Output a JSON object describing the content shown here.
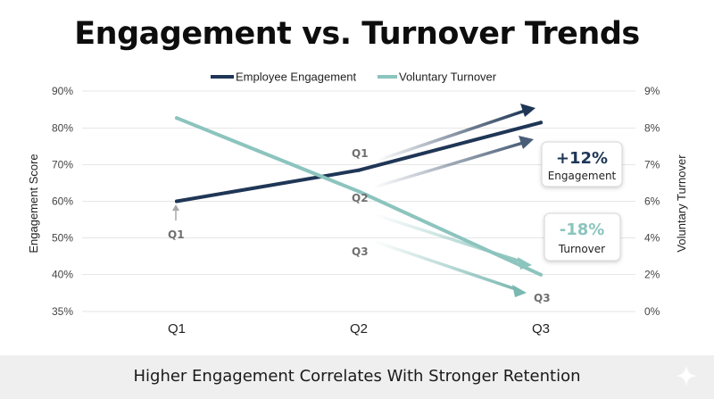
{
  "chart_data": {
    "type": "line",
    "title": "Engagement vs. Turnover Trends",
    "subtitle": "Higher Engagement Correlates With Stronger Retention",
    "categories": [
      "Q1",
      "Q2",
      "Q3"
    ],
    "ylabel": "Engagement Score",
    "y2label": "Voluntary Turnover",
    "ylim": [
      35,
      90
    ],
    "y_ticks": [
      "90%",
      "80%",
      "70%",
      "60%",
      "50%",
      "40%",
      "35%"
    ],
    "y2lim": [
      0,
      9
    ],
    "y2_ticks": [
      "9%",
      "8%",
      "7%",
      "6%",
      "5%",
      "4%",
      "2%",
      "0%"
    ],
    "grid": true,
    "legend_position": "top-center",
    "series": [
      {
        "name": "Employee Engagement",
        "axis": "left",
        "values": [
          60,
          68.5,
          81.5
        ],
        "color": "#1f3656"
      },
      {
        "name": "Voluntary Turnover",
        "axis": "right",
        "values": [
          7.9,
          4.9,
          1.5
        ],
        "color": "#8cc4be"
      }
    ],
    "annotations": {
      "point_labels": [
        "Q1",
        "Q1",
        "Q2",
        "Q3",
        "Q3"
      ],
      "engagement_change": {
        "value": "+12%",
        "label": "Engagement",
        "color": "#1f3656"
      },
      "turnover_change": {
        "value": "-18%",
        "label": "Turnover",
        "color": "#8cc4be"
      }
    }
  }
}
